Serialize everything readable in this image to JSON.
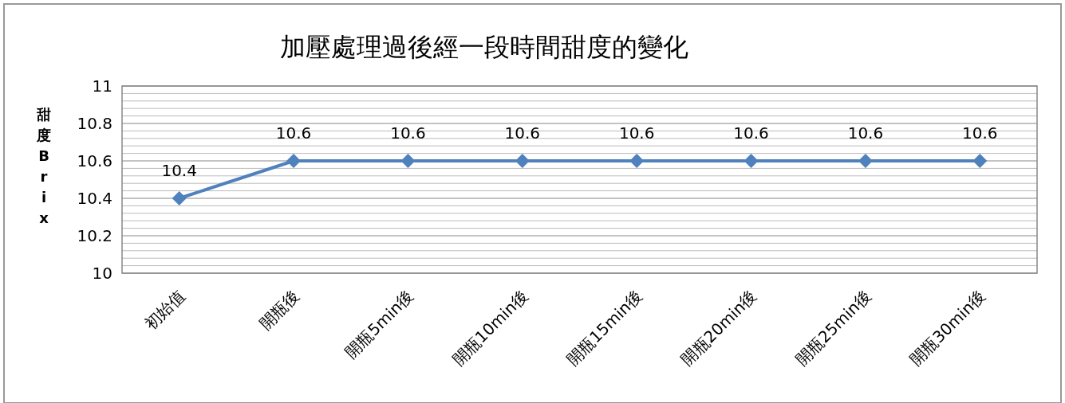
{
  "chart_data": {
    "type": "line",
    "title": "加壓處理過後經一段時間甜度的變化",
    "ylabel": "甜度Brix",
    "categories": [
      "初始值",
      "開瓶後",
      "開瓶5min後",
      "開瓶10min後",
      "開瓶15min後",
      "開瓶20min後",
      "開瓶25min後",
      "開瓶30min後"
    ],
    "series": [
      {
        "color": "#4f81bd",
        "values": [
          10.4,
          10.6,
          10.6,
          10.6,
          10.6,
          10.6,
          10.6,
          10.6
        ]
      }
    ],
    "ylim": [
      10,
      11
    ],
    "yticks": [
      10,
      {
        "value": 10.04,
        "label": null
      },
      {
        "value": 10.08,
        "label": null
      },
      {
        "value": 10.12,
        "label": null
      },
      {
        "value": 10.16,
        "label": null
      },
      10.2,
      {
        "value": 10.24,
        "label": null
      },
      {
        "value": 10.28,
        "label": null
      },
      {
        "value": 10.32,
        "label": null
      },
      {
        "value": 10.36,
        "label": null
      },
      10.4,
      {
        "value": 10.44,
        "label": null
      },
      {
        "value": 10.48,
        "label": null
      },
      {
        "value": 10.52,
        "label": null
      },
      {
        "value": 10.56,
        "label": null
      },
      10.6,
      {
        "value": 10.64,
        "label": null
      },
      {
        "value": 10.68,
        "label": null
      },
      {
        "value": 10.72,
        "label": null
      },
      {
        "value": 10.76,
        "label": null
      },
      10.8,
      {
        "value": 10.84,
        "label": null
      },
      {
        "value": 10.88,
        "label": null
      },
      {
        "value": 10.92,
        "label": null
      },
      {
        "value": 10.96,
        "label": null
      },
      11
    ],
    "grid": "y",
    "marker": "diamond",
    "line_style": "solid",
    "data_labels": true
  }
}
